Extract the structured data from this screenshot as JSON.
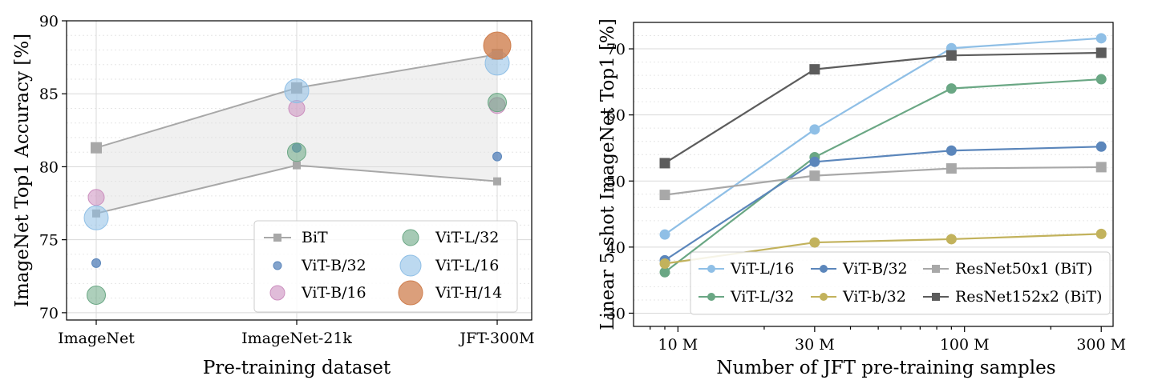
{
  "colors": {
    "bit": "#a8a8a8",
    "bit_dark": "#5c5c5c",
    "vit_b32": "#5b86bb",
    "vit_b16": "#cc8fbf",
    "vit_l32": "#6aa784",
    "vit_l16": "#8fbfe6",
    "vit_h14": "#cf7f4f",
    "vit_b_small": "#c2b25c",
    "shade": "#dedede"
  },
  "chart_data": [
    {
      "type": "scatter",
      "xlabel": "Pre-training dataset",
      "ylabel": "ImageNet Top1 Accuracy [%]",
      "ylim": [
        69.5,
        90
      ],
      "yticks": [
        70,
        75,
        80,
        85,
        90
      ],
      "categories": [
        "ImageNet",
        "ImageNet-21k",
        "JFT-300M"
      ],
      "bit_band": {
        "name": "BiT",
        "upper": [
          81.3,
          85.4,
          87.7
        ],
        "lower": [
          76.8,
          80.1,
          79.0
        ]
      },
      "series": [
        {
          "name": "ViT-B/32",
          "key": "vit_b32",
          "size": "small",
          "values": [
            73.4,
            81.3,
            80.7
          ]
        },
        {
          "name": "ViT-B/16",
          "key": "vit_b16",
          "size": "medium",
          "values": [
            77.9,
            84.0,
            84.2
          ]
        },
        {
          "name": "ViT-L/32",
          "key": "vit_l32",
          "size": "medium-large",
          "values": [
            71.2,
            81.0,
            84.4
          ]
        },
        {
          "name": "ViT-L/16",
          "key": "vit_l16",
          "size": "large",
          "values": [
            76.5,
            85.2,
            87.1
          ]
        },
        {
          "name": "ViT-H/14",
          "key": "vit_h14",
          "size": "xlarge",
          "values": [
            null,
            null,
            88.3
          ]
        }
      ],
      "legend": {
        "position": "lower-right",
        "entries": [
          "BiT",
          "ViT-B/32",
          "ViT-B/16",
          "ViT-L/32",
          "ViT-L/16",
          "ViT-H/14"
        ]
      }
    },
    {
      "type": "line",
      "xlabel": "Number of JFT pre-training samples",
      "ylabel": "Linear 5-shot ImageNet Top1 [%]",
      "xscale": "log",
      "xlim": [
        7.0,
        330
      ],
      "x_ticks": [
        10,
        30,
        100,
        300
      ],
      "x_tick_labels": [
        "10 M",
        "30 M",
        "100 M",
        "300 M"
      ],
      "x": [
        9,
        30,
        90,
        300
      ],
      "ylim": [
        28,
        74
      ],
      "yticks": [
        30,
        40,
        50,
        60,
        70
      ],
      "series": [
        {
          "name": "ViT-L/16",
          "key": "vit_l16",
          "marker": "circle",
          "values": [
            41.9,
            57.8,
            70.1,
            71.6
          ]
        },
        {
          "name": "ViT-L/32",
          "key": "vit_l32",
          "marker": "circle",
          "values": [
            36.2,
            53.6,
            64.0,
            65.4
          ]
        },
        {
          "name": "ViT-B/32",
          "key": "vit_b32",
          "marker": "circle",
          "values": [
            38.0,
            52.9,
            54.6,
            55.2
          ]
        },
        {
          "name": "ViT-b/32",
          "key": "vit_b_small",
          "marker": "circle",
          "values": [
            37.5,
            40.7,
            41.2,
            42.0
          ]
        },
        {
          "name": "ResNet50x1 (BiT)",
          "key": "bit",
          "marker": "square",
          "values": [
            47.9,
            50.8,
            51.9,
            52.1
          ]
        },
        {
          "name": "ResNet152x2 (BiT)",
          "key": "bit_dark",
          "marker": "square",
          "values": [
            52.7,
            66.9,
            69.0,
            69.4
          ]
        }
      ],
      "legend": {
        "position": "lower-right",
        "entries": [
          "ViT-L/16",
          "ViT-B/32",
          "ResNet50x1 (BiT)",
          "ViT-L/32",
          "ViT-b/32",
          "ResNet152x2 (BiT)"
        ]
      }
    }
  ]
}
